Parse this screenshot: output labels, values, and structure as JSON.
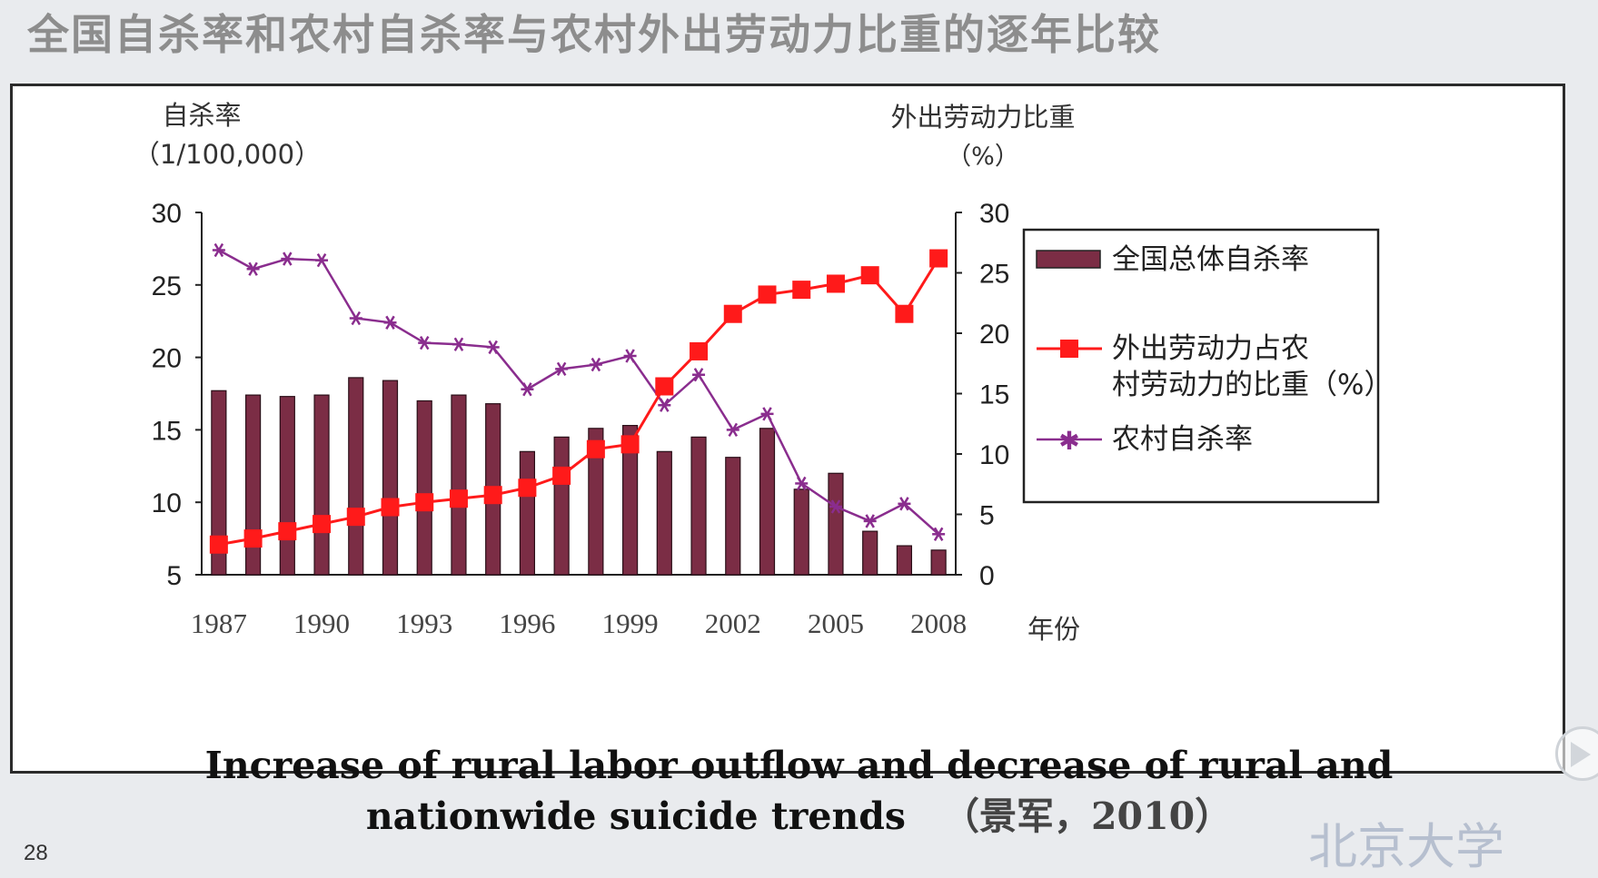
{
  "slide": {
    "title": "全国自杀率和农村自杀率与农村外出劳动力比重的逐年比较",
    "caption_line1": "Increase of rural labor outflow and decrease of rural and",
    "caption_line2": "nationwide suicide trends",
    "caption_cite": "（景军，2010）",
    "page_number": "28",
    "watermark": "北京大学"
  },
  "chart_data": {
    "type": "bar+line",
    "title": "",
    "y_left_label": "自杀率",
    "y_left_unit": "（1/100,000）",
    "y_right_label": "外出劳动力比重",
    "y_right_unit": "（%）",
    "xlabel": "年份",
    "y_left_lim": [
      5,
      30
    ],
    "y_right_lim": [
      0,
      30
    ],
    "y_left_ticks": [
      "30",
      "25",
      "20",
      "15",
      "10",
      "5"
    ],
    "y_right_ticks": [
      "30",
      "25",
      "20",
      "15",
      "10",
      "5",
      "0"
    ],
    "x_tick_labels": [
      "1987",
      "1990",
      "1993",
      "1996",
      "1999",
      "2002",
      "2005",
      "2008"
    ],
    "years": [
      1987,
      1988,
      1989,
      1990,
      1991,
      1992,
      1993,
      1994,
      1995,
      1996,
      1997,
      1998,
      1999,
      2000,
      2001,
      2002,
      2003,
      2004,
      2005,
      2006,
      2007,
      2008
    ],
    "legend_position": "right",
    "series": [
      {
        "name": "全国总体自杀率",
        "kind": "bar",
        "axis": "left",
        "color": "#7b2d45",
        "values": [
          17.7,
          17.4,
          17.3,
          17.4,
          18.6,
          18.4,
          17.0,
          17.4,
          16.8,
          13.5,
          14.5,
          15.1,
          15.3,
          13.5,
          14.5,
          13.1,
          15.1,
          10.9,
          12.0,
          8.0,
          7.0,
          6.7
        ]
      },
      {
        "name": "外出劳动力占农村劳动力的比重（%）",
        "kind": "line",
        "axis": "right",
        "color": "#ff1a1a",
        "values": [
          2.5,
          3.0,
          3.6,
          4.2,
          4.8,
          5.6,
          6.0,
          6.3,
          6.6,
          7.2,
          8.2,
          10.4,
          10.8,
          15.6,
          18.5,
          21.6,
          23.2,
          23.6,
          24.1,
          24.8,
          21.6,
          26.2
        ]
      },
      {
        "name": "农村自杀率",
        "kind": "line",
        "axis": "left",
        "color": "#8a2d8e",
        "values": [
          27.4,
          26.1,
          26.8,
          26.7,
          22.7,
          22.4,
          21.0,
          20.9,
          20.7,
          17.8,
          19.2,
          19.5,
          20.1,
          16.7,
          18.8,
          15.0,
          16.1,
          11.3,
          9.7,
          8.7,
          9.9,
          7.8
        ]
      }
    ]
  }
}
